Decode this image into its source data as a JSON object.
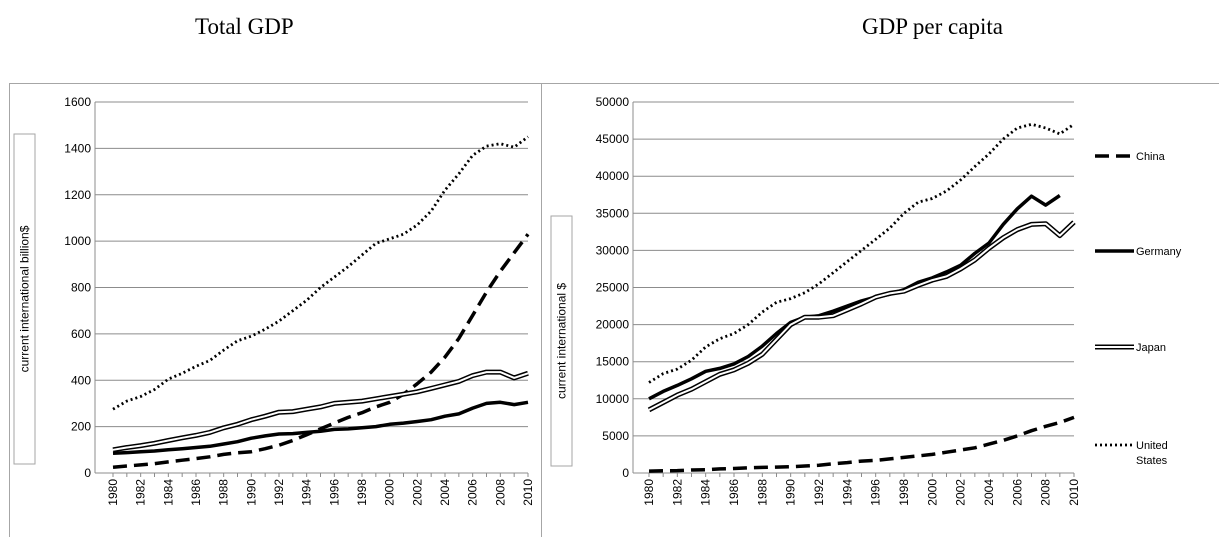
{
  "titles": {
    "left": "Total GDP",
    "right": "GDP per capita"
  },
  "chart_data": [
    {
      "type": "line",
      "title": "Total GDP",
      "ylabel": "current international billion$",
      "xlabel": "",
      "ylim": [
        0,
        1600
      ],
      "yticks": [
        0,
        200,
        400,
        600,
        800,
        1000,
        1200,
        1400,
        1600
      ],
      "x": [
        1980,
        1981,
        1982,
        1983,
        1984,
        1985,
        1986,
        1987,
        1988,
        1989,
        1990,
        1991,
        1992,
        1993,
        1994,
        1995,
        1996,
        1997,
        1998,
        1999,
        2000,
        2001,
        2002,
        2003,
        2004,
        2005,
        2006,
        2007,
        2008,
        2009,
        2010
      ],
      "xtick_labels": [
        "1980",
        "1982",
        "1984",
        "1986",
        "1988",
        "1990",
        "1992",
        "1994",
        "1996",
        "1998",
        "2000",
        "2002",
        "2004",
        "2006",
        "2008",
        "2010"
      ],
      "grid": true,
      "series": [
        {
          "name": "China",
          "style": "dashed",
          "values": [
            25,
            30,
            35,
            40,
            48,
            55,
            62,
            70,
            80,
            87,
            92,
            105,
            120,
            140,
            165,
            190,
            215,
            240,
            260,
            285,
            305,
            340,
            385,
            435,
            500,
            580,
            680,
            780,
            870,
            950,
            1030
          ]
        },
        {
          "name": "Germany",
          "style": "thick",
          "values": [
            85,
            88,
            92,
            95,
            100,
            105,
            110,
            115,
            125,
            135,
            150,
            160,
            168,
            170,
            175,
            180,
            188,
            190,
            195,
            200,
            210,
            215,
            222,
            230,
            245,
            255,
            280,
            300,
            305,
            295,
            305
          ]
        },
        {
          "name": "Japan",
          "style": "double",
          "values": [
            100,
            110,
            118,
            128,
            140,
            152,
            162,
            175,
            195,
            210,
            230,
            245,
            262,
            265,
            275,
            285,
            300,
            305,
            310,
            320,
            330,
            340,
            350,
            365,
            380,
            395,
            420,
            435,
            435,
            410,
            430
          ]
        },
        {
          "name": "United States",
          "style": "dotted",
          "values": [
            275,
            310,
            330,
            360,
            405,
            430,
            460,
            485,
            530,
            570,
            590,
            620,
            655,
            700,
            745,
            800,
            845,
            890,
            940,
            990,
            1010,
            1030,
            1070,
            1130,
            1220,
            1290,
            1370,
            1410,
            1420,
            1405,
            1450
          ]
        }
      ]
    },
    {
      "type": "line",
      "title": "GDP per capita",
      "ylabel": "current international $",
      "xlabel": "",
      "ylim": [
        0,
        50000
      ],
      "yticks": [
        0,
        5000,
        10000,
        15000,
        20000,
        25000,
        30000,
        35000,
        40000,
        45000,
        50000
      ],
      "x": [
        1980,
        1981,
        1982,
        1983,
        1984,
        1985,
        1986,
        1987,
        1988,
        1989,
        1990,
        1991,
        1992,
        1993,
        1994,
        1995,
        1996,
        1997,
        1998,
        1999,
        2000,
        2001,
        2002,
        2003,
        2004,
        2005,
        2006,
        2007,
        2008,
        2009,
        2010
      ],
      "xtick_labels": [
        "1980",
        "1982",
        "1984",
        "1986",
        "1988",
        "1990",
        "1992",
        "1994",
        "1996",
        "1998",
        "2000",
        "2002",
        "2004",
        "2006",
        "2008",
        "2010"
      ],
      "grid": true,
      "legend": "right",
      "series": [
        {
          "name": "China",
          "style": "dashed",
          "values": [
            250,
            300,
            320,
            400,
            450,
            550,
            600,
            700,
            750,
            800,
            850,
            950,
            1050,
            1250,
            1400,
            1600,
            1700,
            1900,
            2100,
            2300,
            2500,
            2800,
            3100,
            3400,
            3900,
            4400,
            5000,
            5700,
            6300,
            6800,
            7500
          ]
        },
        {
          "name": "Germany",
          "style": "thick",
          "values": [
            10000,
            11000,
            11800,
            12700,
            13700,
            14100,
            14700,
            15700,
            17100,
            18800,
            20300,
            21000,
            21200,
            21800,
            22500,
            23200,
            23700,
            24100,
            24700,
            25700,
            26300,
            27100,
            28000,
            29600,
            31000,
            33500,
            35600,
            37300,
            36100,
            37400,
            null
          ]
        },
        {
          "name": "Japan",
          "style": "double",
          "values": [
            8500,
            9500,
            10500,
            11300,
            12300,
            13300,
            13900,
            14800,
            16000,
            18000,
            20000,
            21000,
            21000,
            21200,
            22000,
            22800,
            23700,
            24200,
            24500,
            25300,
            26000,
            26500,
            27500,
            28700,
            30300,
            31700,
            32800,
            33500,
            33600,
            32000,
            33800
          ]
        },
        {
          "name": "United States",
          "style": "dotted",
          "values": [
            12200,
            13400,
            14000,
            15200,
            17000,
            18100,
            18800,
            20000,
            21700,
            23000,
            23500,
            24300,
            25500,
            27000,
            28500,
            30000,
            31500,
            33000,
            35000,
            36500,
            37000,
            38000,
            39500,
            41300,
            43000,
            45000,
            46500,
            47000,
            46500,
            45700,
            47000
          ]
        }
      ]
    }
  ]
}
